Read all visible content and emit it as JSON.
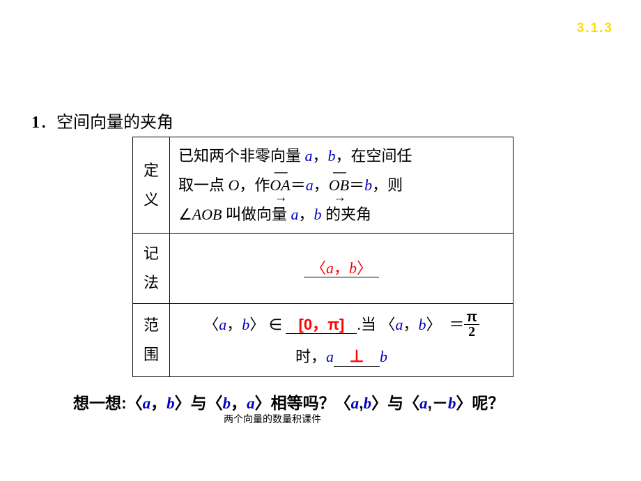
{
  "page_number": {
    "text": "3.1.3",
    "color": "#ffdd00",
    "fontsize": 19
  },
  "heading": {
    "num": "1",
    "sep": "．",
    "text": "空间向量的夹角"
  },
  "table": {
    "row1": {
      "label_l1": "定",
      "label_l2": "义",
      "p1_a": "已知两个非零向量 ",
      "a": "a",
      "comma1": "，",
      "b": "b",
      "p1_b": "，在空间任",
      "p2_a": "取一点 ",
      "O": "O",
      "p2_b": "，作",
      "vecOA": "OA",
      "eq1": "＝",
      "p2_c": "，",
      "vecOB": "OB",
      "eq2": "＝",
      "p2_d": "，则",
      "p3_a": "∠",
      "AOB": "AOB",
      "p3_b": " 叫做向量 ",
      "p3_c": " 的夹角"
    },
    "row2": {
      "label_l1": "记",
      "label_l2": "法",
      "open": "〈",
      "a": "a",
      "comma": "，",
      "b": "b",
      "close": "〉"
    },
    "row3": {
      "label_l1": "范",
      "label_l2": "围",
      "open1": "〈",
      "a1": "a",
      "comma1": "，",
      "b1": "b",
      "close1": "〉",
      "in": "∈",
      "ans_range": "[0，π]",
      "dang": ".当",
      "open2": "〈",
      "a2": "a",
      "comma2": "，",
      "b2": "b",
      "close2": "〉",
      "eq": "＝",
      "frac_n": "π",
      "frac_d": "2",
      "shi": "时，",
      "perp": "⊥"
    }
  },
  "think": {
    "lead": "想一想:",
    "t1a": "〈",
    "a1": "a",
    "c1": "，",
    "b1": "b",
    "t1b": "〉与〈",
    "b2": "b",
    "c2": "，",
    "a2": "a",
    "t1c": "〉相等吗？〈",
    "a3": "a",
    "c3": ",",
    "b3": "b",
    "t1d": "〉与〈",
    "a4": "a",
    "c4": ",",
    "neg": "－",
    "b4": "b",
    "t1e": "〉呢？"
  },
  "footnote": "两个向量的数量积课件",
  "style": {
    "blue": "#0000c0",
    "red": "#ff0000",
    "black": "#000000",
    "bg": "#ffffff"
  }
}
